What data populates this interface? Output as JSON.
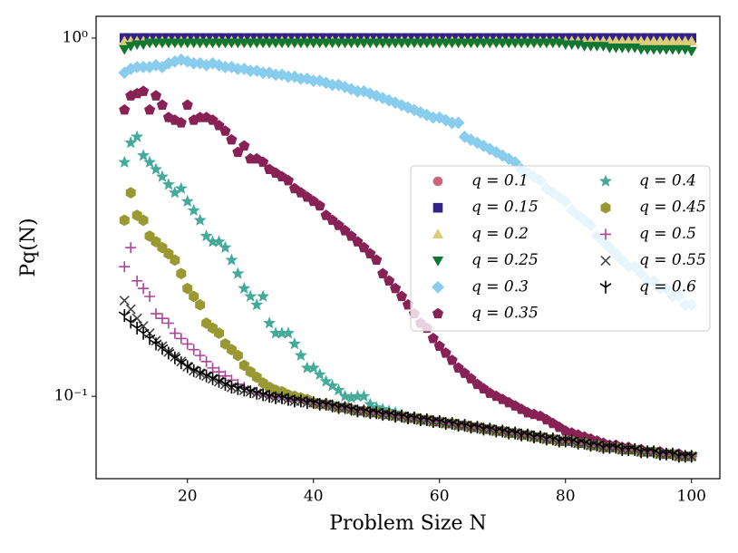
{
  "chart_data": {
    "type": "scatter",
    "xlabel": "Problem Size N",
    "ylabel": "Pq(N)",
    "xlim": [
      5.5,
      104.5
    ],
    "xticks": [
      20,
      40,
      60,
      80,
      100
    ],
    "ylim": [
      0.0589,
      1.15
    ],
    "yscale": "log",
    "yticks": [
      {
        "value": 0.1,
        "label": "10⁻¹"
      },
      {
        "value": 1,
        "label": "10⁰"
      }
    ],
    "legend": "center right",
    "x": [
      10,
      11,
      12,
      13,
      14,
      15,
      16,
      17,
      18,
      19,
      20,
      21,
      22,
      23,
      24,
      25,
      26,
      27,
      28,
      29,
      30,
      31,
      32,
      33,
      34,
      35,
      36,
      37,
      38,
      39,
      40,
      41,
      42,
      43,
      44,
      45,
      46,
      47,
      48,
      49,
      50,
      51,
      52,
      53,
      54,
      55,
      56,
      57,
      58,
      59,
      60,
      61,
      62,
      63,
      64,
      65,
      66,
      67,
      68,
      69,
      70,
      71,
      72,
      73,
      74,
      75,
      76,
      77,
      78,
      79,
      80,
      81,
      82,
      83,
      84,
      85,
      86,
      87,
      88,
      89,
      90,
      91,
      92,
      93,
      94,
      95,
      96,
      97,
      98,
      99,
      100
    ],
    "series": [
      {
        "name": "q = 0.1",
        "color": "#CC6677",
        "marker": "o",
        "values": [
          1,
          1,
          1,
          1,
          1,
          1,
          1,
          1,
          1,
          1,
          1,
          1,
          1,
          1,
          1,
          1,
          1,
          1,
          1,
          1,
          1,
          1,
          1,
          1,
          1,
          1,
          1,
          1,
          1,
          1,
          1,
          1,
          1,
          1,
          1,
          1,
          1,
          1,
          1,
          1,
          1,
          1,
          1,
          1,
          1,
          1,
          1,
          1,
          1,
          1,
          1,
          1,
          1,
          1,
          1,
          1,
          1,
          1,
          1,
          1,
          1,
          1,
          1,
          1,
          1,
          1,
          1,
          1,
          1,
          1,
          1,
          1,
          1,
          1,
          1,
          1,
          1,
          1,
          1,
          1,
          1,
          1,
          1,
          1,
          1,
          1,
          1,
          1,
          1,
          1,
          1
        ]
      },
      {
        "name": "q = 0.15",
        "color": "#332288",
        "marker": "s",
        "values": [
          1,
          1,
          1,
          1,
          1,
          1,
          1,
          1,
          1,
          1,
          1,
          1,
          1,
          1,
          1,
          1,
          1,
          1,
          1,
          1,
          1,
          1,
          1,
          1,
          1,
          1,
          1,
          1,
          1,
          1,
          1,
          1,
          1,
          1,
          1,
          1,
          1,
          1,
          1,
          1,
          1,
          1,
          1,
          1,
          1,
          1,
          1,
          1,
          1,
          1,
          1,
          1,
          1,
          1,
          1,
          1,
          1,
          1,
          1,
          1,
          1,
          1,
          1,
          1,
          1,
          1,
          1,
          1,
          1,
          1,
          1,
          1,
          1,
          1,
          1,
          1,
          1,
          1,
          1,
          1,
          1,
          1,
          1,
          1,
          1,
          1,
          1,
          1,
          1,
          1,
          1
        ]
      },
      {
        "name": "q = 0.2",
        "color": "#DDCC77",
        "marker": "^",
        "values": [
          0.98,
          0.98,
          0.98,
          0.98,
          0.98,
          0.98,
          0.98,
          0.98,
          0.98,
          0.98,
          0.98,
          0.98,
          0.98,
          0.98,
          0.98,
          0.98,
          0.98,
          0.98,
          0.98,
          0.98,
          0.98,
          0.98,
          0.98,
          0.98,
          0.98,
          0.98,
          0.98,
          0.98,
          0.98,
          0.98,
          0.98,
          0.98,
          0.98,
          0.98,
          0.98,
          0.98,
          0.98,
          0.98,
          0.98,
          0.98,
          0.98,
          0.98,
          0.98,
          0.98,
          0.98,
          0.98,
          0.98,
          0.98,
          0.98,
          0.98,
          0.98,
          0.98,
          0.98,
          0.98,
          0.98,
          0.98,
          0.98,
          0.98,
          0.98,
          0.98,
          0.98,
          0.98,
          0.98,
          0.98,
          0.98,
          0.98,
          0.98,
          0.98,
          0.98,
          0.98,
          0.98,
          0.98,
          0.98,
          0.98,
          0.98,
          0.98,
          0.98,
          0.98,
          0.98,
          0.98,
          0.98,
          0.98,
          0.98,
          0.98,
          0.98,
          0.98,
          0.98,
          0.98,
          0.98,
          0.98,
          0.98
        ]
      },
      {
        "name": "q = 0.25",
        "color": "#117733",
        "marker": "v",
        "values": [
          0.93,
          0.95,
          0.96,
          0.96,
          0.97,
          0.97,
          0.97,
          0.97,
          0.97,
          0.97,
          0.97,
          0.97,
          0.97,
          0.97,
          0.97,
          0.97,
          0.97,
          0.97,
          0.97,
          0.97,
          0.97,
          0.97,
          0.97,
          0.97,
          0.97,
          0.97,
          0.97,
          0.97,
          0.97,
          0.97,
          0.97,
          0.97,
          0.97,
          0.97,
          0.97,
          0.97,
          0.97,
          0.97,
          0.97,
          0.97,
          0.97,
          0.97,
          0.97,
          0.97,
          0.97,
          0.97,
          0.97,
          0.97,
          0.97,
          0.97,
          0.97,
          0.97,
          0.97,
          0.97,
          0.97,
          0.97,
          0.97,
          0.97,
          0.97,
          0.97,
          0.97,
          0.97,
          0.97,
          0.97,
          0.97,
          0.97,
          0.97,
          0.97,
          0.97,
          0.97,
          0.96,
          0.96,
          0.96,
          0.95,
          0.95,
          0.95,
          0.95,
          0.94,
          0.94,
          0.94,
          0.94,
          0.94,
          0.93,
          0.93,
          0.93,
          0.93,
          0.93,
          0.93,
          0.93,
          0.93,
          0.92
        ]
      },
      {
        "name": "q = 0.3",
        "color": "#88CCEE",
        "marker": "D",
        "values": [
          0.8,
          0.82,
          0.83,
          0.83,
          0.83,
          0.84,
          0.83,
          0.85,
          0.86,
          0.87,
          0.86,
          0.85,
          0.85,
          0.84,
          0.85,
          0.84,
          0.83,
          0.83,
          0.82,
          0.82,
          0.81,
          0.81,
          0.8,
          0.8,
          0.79,
          0.79,
          0.78,
          0.78,
          0.77,
          0.77,
          0.76,
          0.76,
          0.75,
          0.74,
          0.74,
          0.73,
          0.72,
          0.71,
          0.71,
          0.7,
          0.69,
          0.68,
          0.67,
          0.66,
          0.65,
          0.64,
          0.63,
          0.62,
          0.61,
          0.6,
          0.6,
          0.59,
          0.58,
          0.58,
          0.53,
          0.52,
          0.51,
          0.5,
          0.49,
          0.48,
          0.47,
          0.46,
          0.45,
          0.43,
          0.42,
          0.41,
          0.4,
          0.38,
          0.37,
          0.36,
          0.35,
          0.33,
          0.32,
          0.31,
          0.3,
          0.28,
          0.27,
          0.26,
          0.25,
          0.24,
          0.23,
          0.23,
          0.22,
          0.21,
          0.21,
          0.2,
          0.2,
          0.19,
          0.19,
          0.18,
          0.18
        ]
      },
      {
        "name": "q = 0.35",
        "color": "#882255",
        "marker": "p",
        "values": [
          0.63,
          0.69,
          0.7,
          0.71,
          0.63,
          0.69,
          0.65,
          0.6,
          0.59,
          0.58,
          0.65,
          0.59,
          0.6,
          0.6,
          0.59,
          0.57,
          0.55,
          0.52,
          0.48,
          0.5,
          0.46,
          0.46,
          0.45,
          0.43,
          0.42,
          0.41,
          0.4,
          0.38,
          0.37,
          0.36,
          0.35,
          0.34,
          0.32,
          0.31,
          0.3,
          0.29,
          0.28,
          0.27,
          0.26,
          0.25,
          0.24,
          0.22,
          0.21,
          0.2,
          0.19,
          0.18,
          0.17,
          0.16,
          0.155,
          0.145,
          0.138,
          0.132,
          0.126,
          0.12,
          0.116,
          0.112,
          0.108,
          0.105,
          0.102,
          0.1,
          0.098,
          0.096,
          0.094,
          0.092,
          0.09,
          0.089,
          0.088,
          0.086,
          0.084,
          0.082,
          0.08,
          0.079,
          0.078,
          0.077,
          0.076,
          0.075,
          0.074,
          0.073,
          0.073,
          0.072,
          0.072,
          0.071,
          0.071,
          0.07,
          0.07,
          0.07,
          0.069,
          0.069,
          0.069,
          0.068,
          0.068
        ]
      },
      {
        "name": "q = 0.4",
        "color": "#44AA99",
        "marker": "*",
        "values": [
          0.45,
          0.51,
          0.53,
          0.47,
          0.45,
          0.43,
          0.41,
          0.39,
          0.37,
          0.38,
          0.35,
          0.33,
          0.31,
          0.28,
          0.27,
          0.27,
          0.26,
          0.24,
          0.22,
          0.2,
          0.19,
          0.18,
          0.19,
          0.16,
          0.15,
          0.15,
          0.15,
          0.14,
          0.13,
          0.12,
          0.12,
          0.115,
          0.11,
          0.107,
          0.104,
          0.1,
          0.099,
          0.1,
          0.1,
          0.095,
          0.093,
          0.092,
          0.091,
          0.09,
          0.089,
          0.087,
          0.087,
          0.086,
          0.086,
          0.085,
          0.085,
          0.084,
          0.084,
          0.083,
          0.083,
          0.082,
          0.082,
          0.081,
          0.081,
          0.08,
          0.08,
          0.079,
          0.079,
          0.078,
          0.078,
          0.077,
          0.077,
          0.076,
          0.076,
          0.075,
          0.075,
          0.075,
          0.074,
          0.074,
          0.073,
          0.073,
          0.072,
          0.072,
          0.072,
          0.071,
          0.071,
          0.071,
          0.07,
          0.07,
          0.07,
          0.069,
          0.069,
          0.069,
          0.068,
          0.068,
          0.068
        ]
      },
      {
        "name": "q = 0.45",
        "color": "#999933",
        "marker": "h",
        "values": [
          0.31,
          0.37,
          0.32,
          0.31,
          0.28,
          0.27,
          0.26,
          0.25,
          0.24,
          0.22,
          0.2,
          0.19,
          0.18,
          0.16,
          0.155,
          0.15,
          0.14,
          0.135,
          0.13,
          0.122,
          0.117,
          0.113,
          0.109,
          0.106,
          0.104,
          0.103,
          0.101,
          0.1,
          0.099,
          0.098,
          0.096,
          0.095,
          0.095,
          0.094,
          0.093,
          0.093,
          0.092,
          0.091,
          0.091,
          0.09,
          0.09,
          0.089,
          0.089,
          0.088,
          0.088,
          0.087,
          0.087,
          0.086,
          0.086,
          0.085,
          0.085,
          0.084,
          0.084,
          0.083,
          0.083,
          0.082,
          0.082,
          0.081,
          0.081,
          0.08,
          0.08,
          0.079,
          0.079,
          0.078,
          0.078,
          0.077,
          0.077,
          0.076,
          0.076,
          0.075,
          0.075,
          0.075,
          0.074,
          0.074,
          0.073,
          0.073,
          0.072,
          0.072,
          0.072,
          0.071,
          0.071,
          0.071,
          0.07,
          0.07,
          0.07,
          0.069,
          0.069,
          0.069,
          0.068,
          0.068,
          0.068
        ]
      },
      {
        "name": "q = 0.5",
        "color": "#AA4499",
        "marker": "+",
        "values": [
          0.23,
          0.26,
          0.21,
          0.2,
          0.19,
          0.17,
          0.165,
          0.16,
          0.15,
          0.145,
          0.14,
          0.135,
          0.13,
          0.125,
          0.12,
          0.117,
          0.114,
          0.111,
          0.108,
          0.106,
          0.103,
          0.102,
          0.101,
          0.1,
          0.099,
          0.099,
          0.098,
          0.097,
          0.097,
          0.096,
          0.096,
          0.095,
          0.095,
          0.094,
          0.093,
          0.093,
          0.092,
          0.091,
          0.091,
          0.09,
          0.09,
          0.089,
          0.089,
          0.088,
          0.088,
          0.087,
          0.087,
          0.086,
          0.086,
          0.085,
          0.085,
          0.084,
          0.084,
          0.083,
          0.083,
          0.082,
          0.082,
          0.081,
          0.081,
          0.08,
          0.08,
          0.079,
          0.079,
          0.078,
          0.078,
          0.077,
          0.077,
          0.076,
          0.076,
          0.075,
          0.075,
          0.075,
          0.074,
          0.074,
          0.073,
          0.073,
          0.072,
          0.072,
          0.072,
          0.071,
          0.071,
          0.071,
          0.07,
          0.07,
          0.07,
          0.069,
          0.069,
          0.069,
          0.068,
          0.068,
          0.068
        ]
      },
      {
        "name": "q = 0.55",
        "color": "#444444",
        "marker": "x",
        "values": [
          0.185,
          0.175,
          0.165,
          0.157,
          0.15,
          0.143,
          0.138,
          0.133,
          0.129,
          0.125,
          0.121,
          0.118,
          0.116,
          0.114,
          0.112,
          0.11,
          0.108,
          0.106,
          0.105,
          0.104,
          0.103,
          0.102,
          0.101,
          0.1,
          0.099,
          0.099,
          0.098,
          0.097,
          0.097,
          0.096,
          0.096,
          0.095,
          0.095,
          0.094,
          0.093,
          0.093,
          0.092,
          0.091,
          0.091,
          0.09,
          0.09,
          0.089,
          0.089,
          0.088,
          0.088,
          0.087,
          0.087,
          0.086,
          0.086,
          0.085,
          0.085,
          0.084,
          0.084,
          0.083,
          0.083,
          0.082,
          0.082,
          0.081,
          0.081,
          0.08,
          0.08,
          0.079,
          0.079,
          0.078,
          0.078,
          0.077,
          0.077,
          0.076,
          0.076,
          0.075,
          0.075,
          0.075,
          0.074,
          0.074,
          0.073,
          0.073,
          0.072,
          0.072,
          0.072,
          0.071,
          0.071,
          0.071,
          0.07,
          0.07,
          0.07,
          0.069,
          0.069,
          0.069,
          0.068,
          0.068,
          0.068
        ]
      },
      {
        "name": "q = 0.6",
        "color": "#000000",
        "marker": "1",
        "values": [
          0.168,
          0.161,
          0.155,
          0.15,
          0.145,
          0.14,
          0.136,
          0.132,
          0.128,
          0.124,
          0.121,
          0.118,
          0.116,
          0.114,
          0.112,
          0.11,
          0.108,
          0.106,
          0.105,
          0.104,
          0.103,
          0.102,
          0.101,
          0.1,
          0.099,
          0.099,
          0.098,
          0.097,
          0.097,
          0.096,
          0.096,
          0.095,
          0.095,
          0.094,
          0.093,
          0.093,
          0.092,
          0.091,
          0.091,
          0.09,
          0.09,
          0.089,
          0.089,
          0.088,
          0.088,
          0.087,
          0.087,
          0.086,
          0.086,
          0.085,
          0.085,
          0.084,
          0.084,
          0.083,
          0.083,
          0.082,
          0.082,
          0.081,
          0.081,
          0.08,
          0.08,
          0.079,
          0.079,
          0.078,
          0.078,
          0.077,
          0.077,
          0.076,
          0.076,
          0.075,
          0.075,
          0.075,
          0.074,
          0.074,
          0.073,
          0.073,
          0.072,
          0.072,
          0.072,
          0.071,
          0.071,
          0.071,
          0.07,
          0.07,
          0.07,
          0.069,
          0.069,
          0.069,
          0.068,
          0.068,
          0.068
        ]
      }
    ]
  }
}
